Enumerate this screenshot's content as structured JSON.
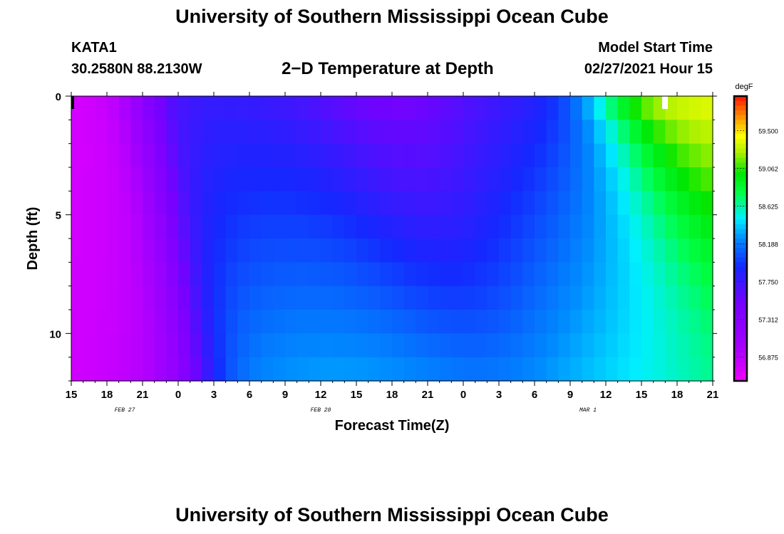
{
  "header": {
    "title": "University of Southern Mississippi Ocean Cube",
    "station": "KATA1",
    "coordinates": "30.2580N 88.2130W",
    "plot_title": "2−D Temperature at Depth",
    "model_start_label": "Model Start Time",
    "model_start_value": "02/27/2021 Hour 15"
  },
  "footer": {
    "title": "University of Southern Mississippi Ocean Cube"
  },
  "chart_data": {
    "type": "heatmap",
    "title": "2−D Temperature at Depth",
    "xlabel": "Forecast Time(Z)",
    "ylabel": "Depth (ft)",
    "x_tick_labels": [
      "15",
      "18",
      "21",
      "0",
      "3",
      "6",
      "9",
      "12",
      "15",
      "18",
      "21",
      "0",
      "3",
      "6",
      "9",
      "12",
      "15",
      "18",
      "21"
    ],
    "date_labels": [
      {
        "text": "FEB 27",
        "at_tick": 1.5
      },
      {
        "text": "FEB 28",
        "at_tick": 7
      },
      {
        "text": "MAR 1",
        "at_tick": 14.5
      }
    ],
    "y_ticks": [
      0,
      5,
      10
    ],
    "ylim": [
      0,
      12
    ],
    "colorbar": {
      "unit": "degF",
      "min": 56.6,
      "max": 59.9,
      "labels": [
        "59.500",
        "59.062",
        "58.625",
        "58.188",
        "57.750",
        "57.312",
        "56.875"
      ]
    },
    "rows": 12,
    "time_columns": 54,
    "grid": false
  }
}
